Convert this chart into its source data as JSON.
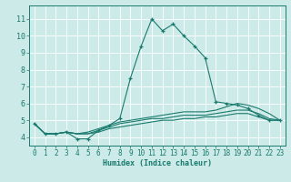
{
  "xlabel": "Humidex (Indice chaleur)",
  "xlim": [
    -0.5,
    23.5
  ],
  "ylim": [
    3.5,
    11.8
  ],
  "xticks": [
    0,
    1,
    2,
    3,
    4,
    5,
    6,
    7,
    8,
    9,
    10,
    11,
    12,
    13,
    14,
    15,
    16,
    17,
    18,
    19,
    20,
    21,
    22,
    23
  ],
  "yticks": [
    4,
    5,
    6,
    7,
    8,
    9,
    10,
    11
  ],
  "background_color": "#cceae7",
  "grid_color": "#ffffff",
  "line_color": "#1a7a6e",
  "lines": [
    {
      "x": [
        0,
        1,
        2,
        3,
        4,
        5,
        6,
        7,
        8,
        9,
        10,
        11,
        12,
        13,
        14,
        15,
        16,
        17,
        18,
        19,
        20,
        21,
        22,
        23
      ],
      "y": [
        4.8,
        4.2,
        4.2,
        4.3,
        3.9,
        3.9,
        4.4,
        4.7,
        5.1,
        7.5,
        9.4,
        11.0,
        10.3,
        10.7,
        10.0,
        9.4,
        8.7,
        6.1,
        6.0,
        5.9,
        5.7,
        5.3,
        5.0,
        5.0
      ],
      "marker": "+"
    },
    {
      "x": [
        0,
        1,
        2,
        3,
        4,
        5,
        6,
        7,
        8,
        9,
        10,
        11,
        12,
        13,
        14,
        15,
        16,
        17,
        18,
        19,
        20,
        21,
        22,
        23
      ],
      "y": [
        4.8,
        4.2,
        4.2,
        4.3,
        4.2,
        4.3,
        4.5,
        4.7,
        4.9,
        5.0,
        5.1,
        5.2,
        5.3,
        5.4,
        5.5,
        5.5,
        5.5,
        5.6,
        5.8,
        6.0,
        5.9,
        5.7,
        5.4,
        5.0
      ],
      "marker": null
    },
    {
      "x": [
        0,
        1,
        2,
        3,
        4,
        5,
        6,
        7,
        8,
        9,
        10,
        11,
        12,
        13,
        14,
        15,
        16,
        17,
        18,
        19,
        20,
        21,
        22,
        23
      ],
      "y": [
        4.8,
        4.2,
        4.2,
        4.3,
        4.2,
        4.2,
        4.4,
        4.6,
        4.8,
        4.9,
        5.0,
        5.1,
        5.1,
        5.2,
        5.3,
        5.3,
        5.3,
        5.4,
        5.5,
        5.6,
        5.6,
        5.4,
        5.1,
        5.0
      ],
      "marker": null
    },
    {
      "x": [
        0,
        1,
        2,
        3,
        4,
        5,
        6,
        7,
        8,
        9,
        10,
        11,
        12,
        13,
        14,
        15,
        16,
        17,
        18,
        19,
        20,
        21,
        22,
        23
      ],
      "y": [
        4.8,
        4.2,
        4.2,
        4.3,
        4.2,
        4.2,
        4.3,
        4.5,
        4.6,
        4.7,
        4.8,
        4.9,
        5.0,
        5.0,
        5.1,
        5.1,
        5.2,
        5.2,
        5.3,
        5.4,
        5.4,
        5.2,
        5.0,
        5.0
      ],
      "marker": null
    }
  ]
}
